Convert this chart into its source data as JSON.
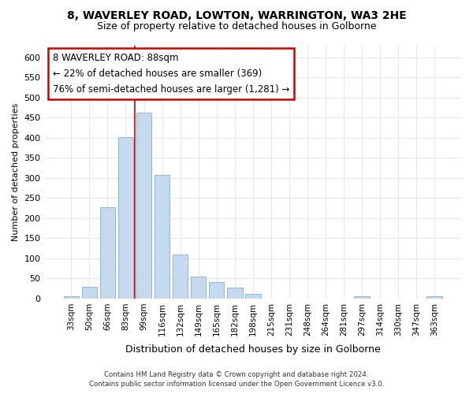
{
  "title": "8, WAVERLEY ROAD, LOWTON, WARRINGTON, WA3 2HE",
  "subtitle": "Size of property relative to detached houses in Golborne",
  "xlabel": "Distribution of detached houses by size in Golborne",
  "ylabel": "Number of detached properties",
  "categories": [
    "33sqm",
    "50sqm",
    "66sqm",
    "83sqm",
    "99sqm",
    "116sqm",
    "132sqm",
    "149sqm",
    "165sqm",
    "182sqm",
    "198sqm",
    "215sqm",
    "231sqm",
    "248sqm",
    "264sqm",
    "281sqm",
    "297sqm",
    "314sqm",
    "330sqm",
    "347sqm",
    "363sqm"
  ],
  "values": [
    5,
    30,
    227,
    402,
    463,
    308,
    110,
    55,
    40,
    28,
    12,
    0,
    0,
    0,
    0,
    0,
    5,
    0,
    0,
    0,
    5
  ],
  "bar_color": "#c5d9ef",
  "bar_edgecolor": "#90b4d8",
  "vline_x_index": 3.5,
  "vline_color": "#cc0000",
  "annotation_text": "8 WAVERLEY ROAD: 88sqm\n← 22% of detached houses are smaller (369)\n76% of semi-detached houses are larger (1,281) →",
  "annotation_box_facecolor": "white",
  "annotation_box_edgecolor": "#cc0000",
  "ylim": [
    0,
    630
  ],
  "yticks": [
    0,
    50,
    100,
    150,
    200,
    250,
    300,
    350,
    400,
    450,
    500,
    550,
    600
  ],
  "footer_line1": "Contains HM Land Registry data © Crown copyright and database right 2024.",
  "footer_line2": "Contains public sector information licensed under the Open Government Licence v3.0.",
  "bg_color": "#ffffff",
  "grid_color": "#e0e8f0",
  "title_fontsize": 10,
  "subtitle_fontsize": 9,
  "ylabel_fontsize": 8,
  "xlabel_fontsize": 9,
  "tick_fontsize": 8,
  "xtick_fontsize": 7.5
}
